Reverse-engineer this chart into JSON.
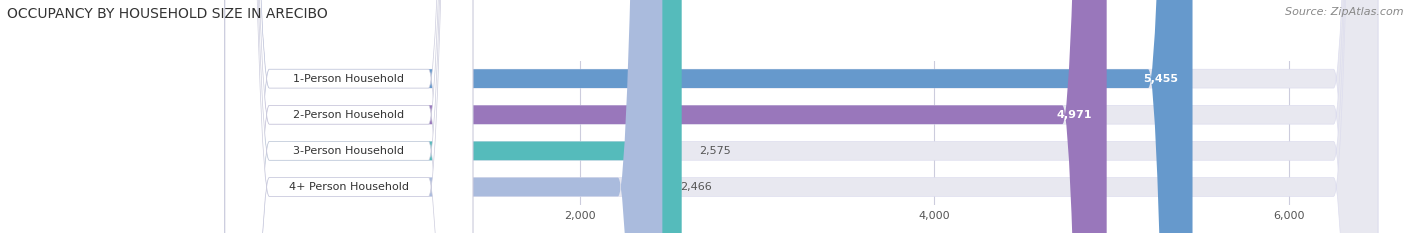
{
  "title": "OCCUPANCY BY HOUSEHOLD SIZE IN ARECIBO",
  "source": "Source: ZipAtlas.com",
  "categories": [
    "1-Person Household",
    "2-Person Household",
    "3-Person Household",
    "4+ Person Household"
  ],
  "values": [
    5455,
    4971,
    2575,
    2466
  ],
  "bar_colors": [
    "#6699cc",
    "#9977bb",
    "#55bbbb",
    "#aabbdd"
  ],
  "bar_bg_color": "#e8e8f0",
  "xlim_max": 6500,
  "xticks": [
    2000,
    4000,
    6000
  ],
  "xtick_labels": [
    "2,000",
    "4,000",
    "6,000"
  ],
  "background_color": "#ffffff",
  "outer_bg_color": "#f5f5fa",
  "title_fontsize": 10,
  "label_fontsize": 8,
  "value_fontsize": 8,
  "source_fontsize": 8
}
